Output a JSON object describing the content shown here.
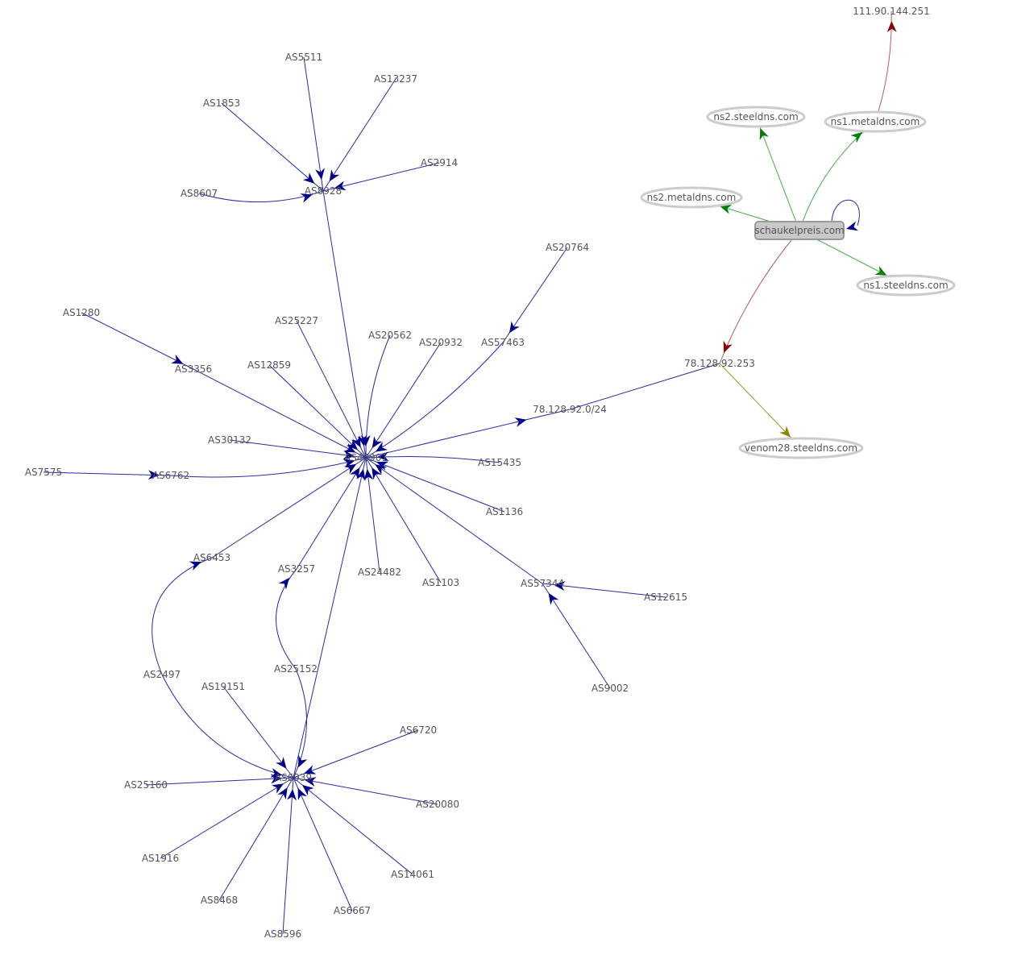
{
  "colors": {
    "as_edge": "#00008b",
    "ns_edge": "#008000",
    "a_record_edge": "#8b0000",
    "mx_edge": "#8b8b00",
    "label": "#555555",
    "ns_node_border": "#cccccc",
    "domain_node_fill": "#c8c8c8"
  },
  "nodes": [
    {
      "id": "AS5511",
      "label": "AS5511",
      "kind": "as"
    },
    {
      "id": "AS13237",
      "label": "AS13237",
      "kind": "as"
    },
    {
      "id": "AS1853",
      "label": "AS1853",
      "kind": "as"
    },
    {
      "id": "AS2914",
      "label": "AS2914",
      "kind": "as"
    },
    {
      "id": "AS8607",
      "label": "AS8607",
      "kind": "as"
    },
    {
      "id": "AS8928",
      "label": "AS8928",
      "kind": "as"
    },
    {
      "id": "AS20764",
      "label": "AS20764",
      "kind": "as"
    },
    {
      "id": "AS1280",
      "label": "AS1280",
      "kind": "as"
    },
    {
      "id": "AS25227",
      "label": "AS25227",
      "kind": "as"
    },
    {
      "id": "AS20562",
      "label": "AS20562",
      "kind": "as"
    },
    {
      "id": "AS20932",
      "label": "AS20932",
      "kind": "as"
    },
    {
      "id": "AS57463",
      "label": "AS57463",
      "kind": "as"
    },
    {
      "id": "AS3356",
      "label": "AS3356",
      "kind": "as"
    },
    {
      "id": "AS12859",
      "label": "AS12859",
      "kind": "as"
    },
    {
      "id": "AS30132",
      "label": "AS30132",
      "kind": "as"
    },
    {
      "id": "AS7575",
      "label": "AS7575",
      "kind": "as"
    },
    {
      "id": "AS6762",
      "label": "AS6762",
      "kind": "as"
    },
    {
      "id": "AS44901",
      "label": "AS44901",
      "kind": "as"
    },
    {
      "id": "AS15435",
      "label": "AS15435",
      "kind": "as"
    },
    {
      "id": "AS1136",
      "label": "AS1136",
      "kind": "as"
    },
    {
      "id": "AS6453",
      "label": "AS6453",
      "kind": "as"
    },
    {
      "id": "AS3257",
      "label": "AS3257",
      "kind": "as"
    },
    {
      "id": "AS24482",
      "label": "AS24482",
      "kind": "as"
    },
    {
      "id": "AS1103",
      "label": "AS1103",
      "kind": "as"
    },
    {
      "id": "AS57344",
      "label": "AS57344",
      "kind": "as"
    },
    {
      "id": "AS12615",
      "label": "AS12615",
      "kind": "as"
    },
    {
      "id": "AS2497",
      "label": "AS2497",
      "kind": "as"
    },
    {
      "id": "AS25152",
      "label": "AS25152",
      "kind": "as"
    },
    {
      "id": "AS19151",
      "label": "AS19151",
      "kind": "as"
    },
    {
      "id": "AS9002",
      "label": "AS9002",
      "kind": "as"
    },
    {
      "id": "AS6720",
      "label": "AS6720",
      "kind": "as"
    },
    {
      "id": "AS6939",
      "label": "AS6939",
      "kind": "as"
    },
    {
      "id": "AS25160",
      "label": "AS25160",
      "kind": "as"
    },
    {
      "id": "AS20080",
      "label": "AS20080",
      "kind": "as"
    },
    {
      "id": "AS1916",
      "label": "AS1916",
      "kind": "as"
    },
    {
      "id": "AS14061",
      "label": "AS14061",
      "kind": "as"
    },
    {
      "id": "AS8468",
      "label": "AS8468",
      "kind": "as"
    },
    {
      "id": "AS6667",
      "label": "AS6667",
      "kind": "as"
    },
    {
      "id": "AS8596",
      "label": "AS8596",
      "kind": "as"
    },
    {
      "id": "prefix",
      "label": "78.128.92.0/24",
      "kind": "prefix"
    },
    {
      "id": "ip1",
      "label": "78.128.92.253",
      "kind": "ip"
    },
    {
      "id": "ip2",
      "label": "111.90.144.251",
      "kind": "ip"
    },
    {
      "id": "domain",
      "label": "schaukelpreis.com",
      "kind": "domain"
    },
    {
      "id": "ns2steel",
      "label": "ns2.steeldns.com",
      "kind": "ns"
    },
    {
      "id": "ns1metal",
      "label": "ns1.metaldns.com",
      "kind": "ns"
    },
    {
      "id": "ns2metal",
      "label": "ns2.metaldns.com",
      "kind": "ns"
    },
    {
      "id": "ns1steel",
      "label": "ns1.steeldns.com",
      "kind": "ns"
    },
    {
      "id": "venom",
      "label": "venom28.steeldns.com",
      "kind": "ns"
    }
  ],
  "edges": [
    {
      "from": "AS5511",
      "to": "AS8928",
      "type": "as"
    },
    {
      "from": "AS13237",
      "to": "AS8928",
      "type": "as"
    },
    {
      "from": "AS1853",
      "to": "AS8928",
      "type": "as"
    },
    {
      "from": "AS2914",
      "to": "AS8928",
      "type": "as"
    },
    {
      "from": "AS8607",
      "to": "AS8928",
      "type": "as"
    },
    {
      "from": "AS8928",
      "to": "AS44901",
      "type": "as"
    },
    {
      "from": "AS20764",
      "to": "AS57463",
      "type": "as"
    },
    {
      "from": "AS57463",
      "to": "AS44901",
      "type": "as"
    },
    {
      "from": "AS1280",
      "to": "AS3356",
      "type": "as"
    },
    {
      "from": "AS3356",
      "to": "AS44901",
      "type": "as"
    },
    {
      "from": "AS25227",
      "to": "AS44901",
      "type": "as"
    },
    {
      "from": "AS20562",
      "to": "AS44901",
      "type": "as"
    },
    {
      "from": "AS20932",
      "to": "AS44901",
      "type": "as"
    },
    {
      "from": "AS12859",
      "to": "AS44901",
      "type": "as"
    },
    {
      "from": "AS30132",
      "to": "AS44901",
      "type": "as"
    },
    {
      "from": "AS7575",
      "to": "AS6762",
      "type": "as"
    },
    {
      "from": "AS6762",
      "to": "AS44901",
      "type": "as"
    },
    {
      "from": "AS15435",
      "to": "AS44901",
      "type": "as"
    },
    {
      "from": "AS1136",
      "to": "AS44901",
      "type": "as"
    },
    {
      "from": "AS24482",
      "to": "AS44901",
      "type": "as"
    },
    {
      "from": "AS1103",
      "to": "AS44901",
      "type": "as"
    },
    {
      "from": "AS57344",
      "to": "AS44901",
      "type": "as"
    },
    {
      "from": "AS12615",
      "to": "AS57344",
      "type": "as"
    },
    {
      "from": "AS9002",
      "to": "AS57344",
      "type": "as"
    },
    {
      "from": "AS6453",
      "to": "AS44901",
      "type": "as"
    },
    {
      "from": "AS3257",
      "to": "AS44901",
      "type": "as"
    },
    {
      "from": "AS6939",
      "to": "AS44901",
      "type": "as"
    },
    {
      "from": "AS2497",
      "to": "AS6453",
      "type": "as"
    },
    {
      "from": "AS2497",
      "to": "AS6939",
      "type": "as"
    },
    {
      "from": "AS25152",
      "to": "AS3257",
      "type": "as"
    },
    {
      "from": "AS25152",
      "to": "AS6939",
      "type": "as"
    },
    {
      "from": "AS19151",
      "to": "AS6939",
      "type": "as"
    },
    {
      "from": "AS6720",
      "to": "AS6939",
      "type": "as"
    },
    {
      "from": "AS25160",
      "to": "AS6939",
      "type": "as"
    },
    {
      "from": "AS20080",
      "to": "AS6939",
      "type": "as"
    },
    {
      "from": "AS1916",
      "to": "AS6939",
      "type": "as"
    },
    {
      "from": "AS8468",
      "to": "AS6939",
      "type": "as"
    },
    {
      "from": "AS8596",
      "to": "AS6939",
      "type": "as"
    },
    {
      "from": "AS6667",
      "to": "AS6939",
      "type": "as"
    },
    {
      "from": "AS14061",
      "to": "AS6939",
      "type": "as"
    },
    {
      "from": "AS44901",
      "to": "prefix",
      "type": "as"
    },
    {
      "from": "ip1",
      "to": "prefix",
      "type": "as_noarrow"
    },
    {
      "from": "domain",
      "to": "ns2steel",
      "type": "ns"
    },
    {
      "from": "domain",
      "to": "ns1metal",
      "type": "ns"
    },
    {
      "from": "domain",
      "to": "ns2metal",
      "type": "ns"
    },
    {
      "from": "domain",
      "to": "ns1steel",
      "type": "ns"
    },
    {
      "from": "domain",
      "to": "domain",
      "type": "as"
    },
    {
      "from": "domain",
      "to": "ip1",
      "type": "a_record"
    },
    {
      "from": "ns1metal",
      "to": "ip2",
      "type": "a_record"
    },
    {
      "from": "ip1",
      "to": "venom",
      "type": "mx"
    }
  ]
}
